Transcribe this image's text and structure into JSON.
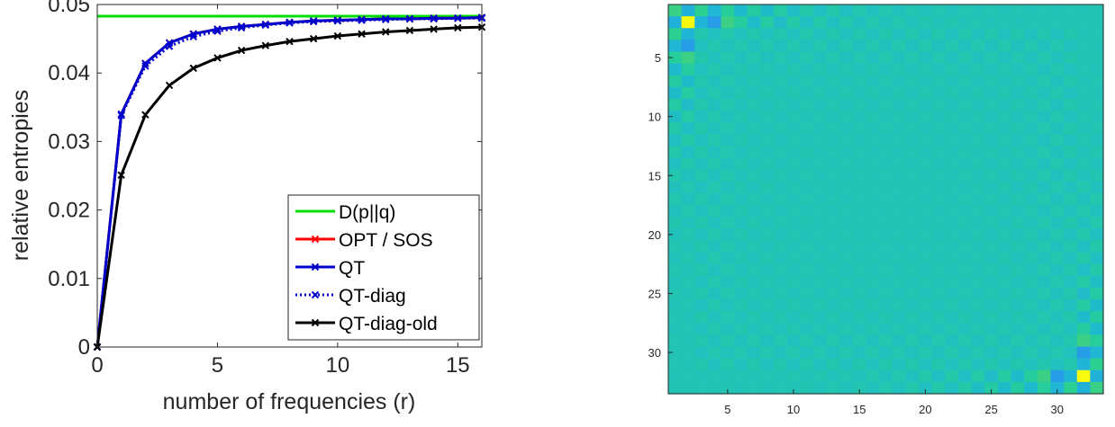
{
  "chart_data": [
    {
      "type": "line",
      "xlabel": "number of frequencies (r)",
      "ylabel": "relative entropies",
      "xlim": [
        0,
        16
      ],
      "ylim": [
        0,
        0.05
      ],
      "xticks": [
        "0",
        "5",
        "10",
        "15"
      ],
      "yticks": [
        "0",
        "0.01",
        "0.02",
        "0.03",
        "0.04",
        "0.05"
      ],
      "grid": false,
      "legend_position": "bottom-right",
      "x": [
        0,
        1,
        2,
        3,
        4,
        5,
        6,
        7,
        8,
        9,
        10,
        11,
        12,
        13,
        14,
        15,
        16
      ],
      "series": [
        {
          "name": "D(p||q)",
          "color": "#00dd00",
          "style": "solid",
          "marker": "none",
          "values": [
            0.0483,
            0.0483,
            0.0483,
            0.0483,
            0.0483,
            0.0483,
            0.0483,
            0.0483,
            0.0483,
            0.0483,
            0.0483,
            0.0483,
            0.0483,
            0.0483,
            0.0483,
            0.0483,
            0.0483
          ]
        },
        {
          "name": "OPT / SOS",
          "color": "#ff0000",
          "style": "solid",
          "marker": "x",
          "values": [
            0,
            0.034,
            0.0414,
            0.0444,
            0.0457,
            0.0464,
            0.0468,
            0.0471,
            0.0474,
            0.0476,
            0.0477,
            0.0478,
            0.0479,
            0.0479,
            0.048,
            0.048,
            0.0481
          ]
        },
        {
          "name": "QT",
          "color": "#0000cc",
          "style": "solid",
          "marker": "x",
          "values": [
            0,
            0.034,
            0.0414,
            0.0444,
            0.0457,
            0.0464,
            0.0468,
            0.0471,
            0.0474,
            0.0476,
            0.0477,
            0.0478,
            0.0479,
            0.0479,
            0.048,
            0.048,
            0.0481
          ]
        },
        {
          "name": "QT-diag",
          "color": "#0000cc",
          "style": "dotted",
          "marker": "x",
          "values": [
            0,
            0.0338,
            0.041,
            0.0439,
            0.0453,
            0.0461,
            0.0466,
            0.047,
            0.0473,
            0.0475,
            0.0476,
            0.0477,
            0.0478,
            0.0479,
            0.0479,
            0.048,
            0.048
          ]
        },
        {
          "name": "QT-diag-old",
          "color": "#000000",
          "style": "solid",
          "marker": "x",
          "values": [
            0,
            0.0251,
            0.0339,
            0.0382,
            0.0407,
            0.0422,
            0.0433,
            0.044,
            0.0446,
            0.045,
            0.0454,
            0.0457,
            0.046,
            0.0462,
            0.0464,
            0.0466,
            0.0467
          ]
        }
      ]
    },
    {
      "type": "heatmap",
      "size": 33,
      "xlim": [
        0.5,
        33.5
      ],
      "ylim": [
        0.5,
        33.5
      ],
      "xticks": [
        "5",
        "10",
        "15",
        "20",
        "25",
        "30"
      ],
      "yticks": [
        "5",
        "10",
        "15",
        "20",
        "25",
        "30"
      ],
      "colormap": [
        "#3e26a8",
        "#3f53e9",
        "#2e86f7",
        "#1fb7d4",
        "#26cf97",
        "#91d23f",
        "#f0ba34",
        "#f9fb0e"
      ],
      "clim": [
        -1,
        1
      ],
      "background_value": 0,
      "highlights": [
        {
          "row": 2,
          "col": 2,
          "value": 1.0
        },
        {
          "row": 32,
          "col": 32,
          "value": 1.0
        },
        {
          "row": 2,
          "col": 4,
          "value": -0.3
        },
        {
          "row": 4,
          "col": 2,
          "value": -0.3
        },
        {
          "row": 30,
          "col": 32,
          "value": -0.3
        },
        {
          "row": 32,
          "col": 30,
          "value": -0.3
        },
        {
          "row": 2,
          "col": 5,
          "value": 0.2
        },
        {
          "row": 5,
          "col": 2,
          "value": 0.2
        },
        {
          "row": 29,
          "col": 32,
          "value": 0.2
        },
        {
          "row": 32,
          "col": 29,
          "value": 0.2
        }
      ]
    }
  ]
}
